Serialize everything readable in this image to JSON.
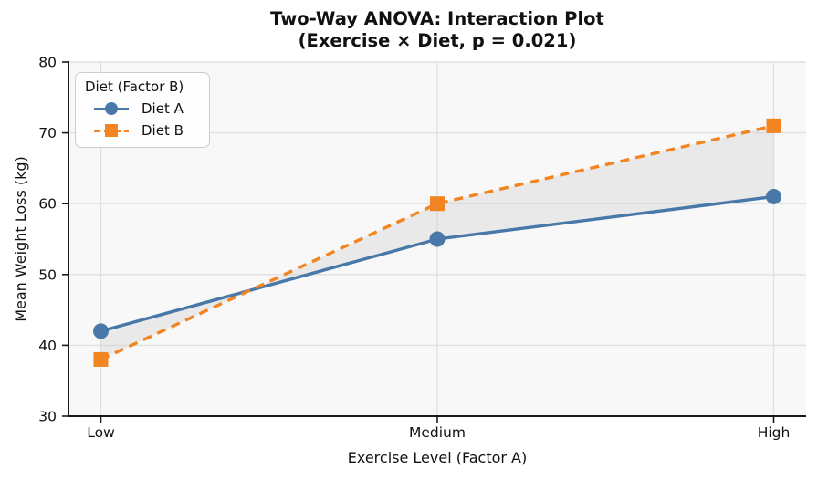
{
  "chart_data": {
    "type": "line",
    "title": "Two-Way ANOVA: Interaction Plot (Exercise × Diet, p = 0.021)",
    "title_lines": [
      "Two-Way ANOVA: Interaction Plot",
      "(Exercise × Diet, p = 0.021)"
    ],
    "xlabel": "Exercise Level (Factor A)",
    "ylabel": "Mean Weight Loss (kg)",
    "categories": [
      "Low",
      "Medium",
      "High"
    ],
    "series": [
      {
        "name": "Diet A",
        "values": [
          42,
          55,
          61
        ],
        "color": "#4878a8",
        "line_style": "solid",
        "marker": "circle"
      },
      {
        "name": "Diet B",
        "values": [
          38,
          60,
          71
        ],
        "color": "#f28522",
        "line_style": "dashed",
        "marker": "square"
      }
    ],
    "ylim": [
      30,
      80
    ],
    "yticks": [
      30,
      40,
      50,
      60,
      70,
      80
    ],
    "grid": true,
    "fill_between_series": true,
    "legend": {
      "title": "Diet (Factor B)",
      "position": "upper-left"
    },
    "styles": {
      "figure_bg": "#ffffff",
      "plot_bg": "#f8f8f8",
      "grid_color": "#e0e0e0",
      "fill_between_color": "#c9c9c9",
      "axis_color": "#1a1a1a",
      "legend_border": "#cccccc"
    }
  }
}
